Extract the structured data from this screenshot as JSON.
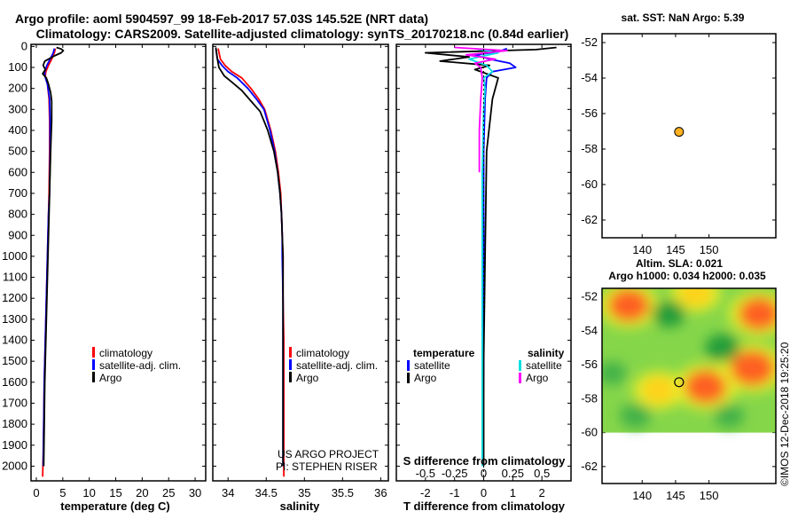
{
  "title_line1": "Argo profile: aoml 5904597_99 18-Feb-2017 57.03S 145.52E (NRT data)",
  "title_line2": "Climatology: CARS2009. Satellite-adjusted climatology: synTS_20170218.nc (0.84d earlier)",
  "credit_line1": "US ARGO PROJECT",
  "credit_line2": "PI: STEPHEN RISER",
  "watermark": "©IMOS 12-Dec-2018 19:25:20",
  "colors": {
    "climatology": "#ff0000",
    "satellite": "#0000ff",
    "argo": "#000000",
    "cyan": "#00e0e0",
    "magenta": "#ff00ff",
    "marker": "#ffb020"
  },
  "chart_data": [
    {
      "type": "line",
      "id": "temperature",
      "xlabel": "temperature (deg C)",
      "ylabel": "",
      "xlim": [
        -1,
        32
      ],
      "ylim": [
        2070,
        -10
      ],
      "xticks": [
        0,
        5,
        10,
        15,
        20,
        25,
        30
      ],
      "yticks": [
        0,
        100,
        200,
        300,
        400,
        500,
        600,
        700,
        800,
        900,
        1000,
        1100,
        1200,
        1300,
        1400,
        1500,
        1600,
        1700,
        1800,
        1900,
        2000
      ],
      "legend": [
        "climatology",
        "satellite-adj. clim.",
        "Argo"
      ],
      "series": [
        {
          "name": "climatology",
          "x": [
            3.6,
            3.4,
            2.9,
            2.3,
            1.8,
            1.7,
            2.1,
            2.4,
            2.5,
            2.5,
            2.4,
            2.3,
            2.2,
            2.1,
            2.0,
            1.9,
            1.8,
            1.7,
            1.6,
            1.5,
            1.4,
            1.3,
            1.2
          ],
          "y": [
            10,
            30,
            60,
            90,
            120,
            140,
            180,
            250,
            350,
            500,
            700,
            800,
            900,
            1000,
            1100,
            1200,
            1300,
            1400,
            1500,
            1600,
            1800,
            1950,
            2050
          ]
        },
        {
          "name": "satellite-adj. clim.",
          "x": [
            3.4,
            3.2,
            2.6,
            2.0,
            1.6,
            1.6,
            2.1,
            2.5,
            2.6,
            2.6,
            2.5,
            2.3,
            2.2,
            2.1,
            2.0,
            1.9,
            1.8,
            1.7,
            1.6,
            1.5,
            1.4,
            1.3
          ],
          "y": [
            10,
            30,
            60,
            90,
            120,
            140,
            180,
            250,
            350,
            500,
            700,
            800,
            900,
            1000,
            1100,
            1200,
            1300,
            1400,
            1500,
            1600,
            1800,
            2000
          ]
        },
        {
          "name": "Argo",
          "x": [
            3.8,
            4.7,
            5.1,
            4.7,
            3.4,
            1.6,
            1.3,
            1.7,
            1.2,
            1.9,
            2.3,
            2.7,
            2.9,
            2.9,
            2.7,
            2.5,
            2.4,
            2.3,
            2.2,
            2.1,
            2.0,
            1.9,
            1.8,
            1.7,
            1.6,
            1.5,
            1.4
          ],
          "y": [
            5,
            12,
            20,
            30,
            45,
            70,
            90,
            110,
            130,
            150,
            180,
            220,
            260,
            350,
            500,
            700,
            800,
            900,
            1000,
            1100,
            1200,
            1300,
            1400,
            1500,
            1600,
            1800,
            2000
          ]
        }
      ]
    },
    {
      "type": "line",
      "id": "salinity",
      "xlabel": "salinity",
      "ylabel": "",
      "xlim": [
        33.8,
        36.1
      ],
      "ylim": [
        2070,
        -10
      ],
      "xticks": [
        34,
        34.5,
        35,
        35.5,
        36
      ],
      "legend": [
        "climatology",
        "satellite-adj. clim.",
        "Argo"
      ],
      "series": [
        {
          "name": "climatology",
          "x": [
            33.87,
            33.9,
            33.96,
            34.05,
            34.18,
            34.3,
            34.4,
            34.48,
            34.56,
            34.62,
            34.66,
            34.69,
            34.7,
            34.71,
            34.72,
            34.72,
            34.73,
            34.73,
            34.73,
            34.73,
            34.73
          ],
          "y": [
            10,
            60,
            90,
            120,
            150,
            200,
            250,
            300,
            400,
            500,
            600,
            700,
            800,
            900,
            1000,
            1200,
            1400,
            1600,
            1800,
            2000,
            2050
          ]
        },
        {
          "name": "satellite-adj. clim.",
          "x": [
            33.84,
            33.86,
            33.92,
            34.0,
            34.12,
            34.26,
            34.37,
            34.47,
            34.55,
            34.61,
            34.65,
            34.68,
            34.7,
            34.71,
            34.71,
            34.72,
            34.72,
            34.72,
            34.72,
            34.72
          ],
          "y": [
            10,
            60,
            90,
            120,
            150,
            200,
            250,
            300,
            400,
            500,
            600,
            700,
            800,
            900,
            1000,
            1200,
            1400,
            1600,
            1800,
            2000
          ]
        },
        {
          "name": "Argo",
          "x": [
            33.84,
            33.86,
            33.88,
            33.95,
            34.05,
            34.18,
            34.3,
            34.42,
            34.52,
            34.6,
            34.65,
            34.68,
            34.7,
            34.71,
            34.72,
            34.72,
            34.72,
            34.72,
            34.72
          ],
          "y": [
            5,
            60,
            100,
            140,
            170,
            210,
            260,
            310,
            400,
            500,
            600,
            700,
            800,
            900,
            1000,
            1200,
            1400,
            1600,
            2000
          ]
        }
      ]
    },
    {
      "type": "line",
      "id": "difference",
      "xlabel": "T difference from climatology",
      "top_label": "S difference from climatology",
      "xlim": [
        -3,
        3
      ],
      "ylim": [
        2070,
        -10
      ],
      "xticks": [
        -2,
        -1,
        0,
        1,
        2
      ],
      "xticklabels": [
        "-2",
        "-1",
        "0",
        "1",
        "2"
      ],
      "top_xticks": [
        -2,
        -1,
        0,
        1,
        2
      ],
      "top_xticklabels": [
        "-0.5",
        "-0.25",
        "0",
        "0.25",
        "0.5"
      ],
      "legend_left_title": "temperature",
      "legend_left": [
        "satellite",
        "Argo"
      ],
      "legend_right_title": "salinity",
      "legend_right": [
        "satellite",
        "Argo"
      ],
      "series": [
        {
          "name": "T satellite",
          "color": "blue",
          "x": [
            0.8,
            0.5,
            -0.3,
            0.2,
            0.9,
            1.1,
            0.3,
            0.1,
            0.05,
            0.0,
            0.0,
            0.0,
            -0.02,
            -0.03
          ],
          "y": [
            10,
            25,
            40,
            60,
            80,
            100,
            120,
            150,
            250,
            500,
            1000,
            1500,
            1800,
            2000
          ]
        },
        {
          "name": "T Argo",
          "color": "black",
          "x": [
            2.5,
            1.8,
            -2.0,
            -0.5,
            -1.5,
            0.2,
            -0.3,
            0.5,
            0.3,
            0.1,
            0.05,
            0.0,
            0.0
          ],
          "y": [
            5,
            15,
            30,
            50,
            70,
            90,
            110,
            150,
            250,
            500,
            1000,
            1500,
            2000
          ]
        },
        {
          "name": "S satellite",
          "color": "cyan",
          "x": [
            -0.3,
            0.5,
            -0.5,
            0.1,
            0.3,
            0.0,
            0.05,
            0.0,
            -0.05,
            -0.05,
            -0.05,
            -0.05
          ],
          "y": [
            10,
            30,
            60,
            90,
            120,
            150,
            200,
            300,
            600,
            1000,
            1500,
            2000
          ]
        },
        {
          "name": "S Argo",
          "color": "magenta",
          "x": [
            -1.0,
            0.8,
            -0.6,
            0.4,
            -0.3,
            -0.1,
            -0.05,
            -0.1,
            -0.15,
            -0.15
          ],
          "y": [
            5,
            20,
            40,
            60,
            80,
            100,
            150,
            250,
            400,
            600
          ]
        }
      ]
    },
    {
      "type": "scatter",
      "id": "sst_map",
      "title": "sat. SST: NaN Argo: 5.39",
      "xlim": [
        134,
        160
      ],
      "ylim": [
        -63,
        -51.5
      ],
      "xticks": [
        140,
        145,
        150
      ],
      "yticks": [
        -52,
        -54,
        -56,
        -58,
        -60,
        -62
      ],
      "points": [
        {
          "lon": 145.52,
          "lat": -57.03
        }
      ]
    },
    {
      "type": "heatmap",
      "id": "sla_map",
      "title_line1": "Altim. SLA: 0.021",
      "title_line2": "Argo h1000: 0.034 h2000: 0.035",
      "xlim": [
        134,
        160
      ],
      "ylim": [
        -63,
        -51.5
      ],
      "xticks": [
        140,
        145,
        150
      ],
      "yticks": [
        -52,
        -54,
        -56,
        -58,
        -60,
        -62
      ],
      "field_lat_range": [
        -60,
        -51.5
      ],
      "points": [
        {
          "lon": 145.52,
          "lat": -57.03
        }
      ],
      "blobs": [
        {
          "lon": 138.0,
          "lat": -52.5,
          "level": 2.2
        },
        {
          "lon": 142.5,
          "lat": -57.5,
          "level": 1.6
        },
        {
          "lon": 149.5,
          "lat": -57.3,
          "level": 2.3
        },
        {
          "lon": 156.5,
          "lat": -56.2,
          "level": 2.5
        },
        {
          "lon": 157.5,
          "lat": -53.0,
          "level": 2.2
        },
        {
          "lon": 148.0,
          "lat": -51.8,
          "level": 1.5
        },
        {
          "lon": 152.0,
          "lat": -55.0,
          "level": -1.6
        },
        {
          "lon": 144.0,
          "lat": -53.0,
          "level": -1.5
        },
        {
          "lon": 139.0,
          "lat": -59.0,
          "level": -1.3
        },
        {
          "lon": 153.0,
          "lat": -59.0,
          "level": -1.2
        },
        {
          "lon": 135.5,
          "lat": -56.5,
          "level": -1.1
        }
      ]
    }
  ]
}
